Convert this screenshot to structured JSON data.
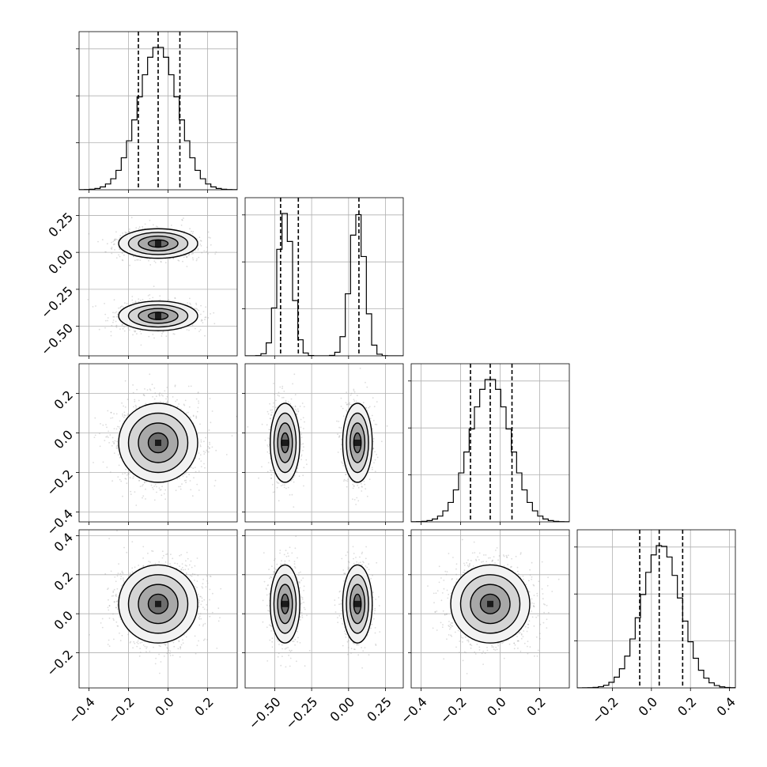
{
  "chart_data": {
    "type": "corner",
    "n_params": 4,
    "grid": true,
    "params": [
      {
        "mu": -0.05,
        "sd": 0.1,
        "range": [
          -0.45,
          0.35
        ],
        "ticks": [
          -0.4,
          -0.2,
          0.0,
          0.2
        ],
        "tick_labels": [
          "−0.4",
          "−0.2",
          "0.0",
          "0.2"
        ],
        "quantiles": [
          -0.15,
          -0.05,
          0.06
        ]
      },
      {
        "modes": [
          {
            "mu": -0.43,
            "sd": 0.05,
            "weight": 0.5
          },
          {
            "mu": 0.06,
            "sd": 0.05,
            "weight": 0.5
          }
        ],
        "range": [
          -0.7,
          0.37
        ],
        "ticks": [
          -0.5,
          -0.25,
          0.0,
          0.25
        ],
        "tick_labels": [
          "−0.50",
          "−0.25",
          "0.00",
          "0.25"
        ],
        "quantiles": [
          -0.46,
          -0.34,
          0.07
        ]
      },
      {
        "mu": -0.05,
        "sd": 0.1,
        "range": [
          -0.45,
          0.35
        ],
        "ticks": [
          -0.4,
          -0.2,
          0.0,
          0.2
        ],
        "tick_labels": [
          "−0.4",
          "−0.2",
          "0.0",
          "0.2"
        ],
        "quantiles": [
          -0.15,
          -0.05,
          0.06
        ]
      },
      {
        "mu": 0.05,
        "sd": 0.1,
        "range": [
          -0.38,
          0.43
        ],
        "ticks": [
          -0.2,
          0.0,
          0.2,
          0.4
        ],
        "tick_labels": [
          "−0.2",
          "0.0",
          "0.2",
          "0.4"
        ],
        "quantiles": [
          -0.06,
          0.04,
          0.16
        ]
      }
    ],
    "axis_labels": [
      "",
      "",
      "",
      ""
    ],
    "contour_levels_sigma": [
      0.5,
      1.0,
      1.5,
      2.0
    ]
  }
}
